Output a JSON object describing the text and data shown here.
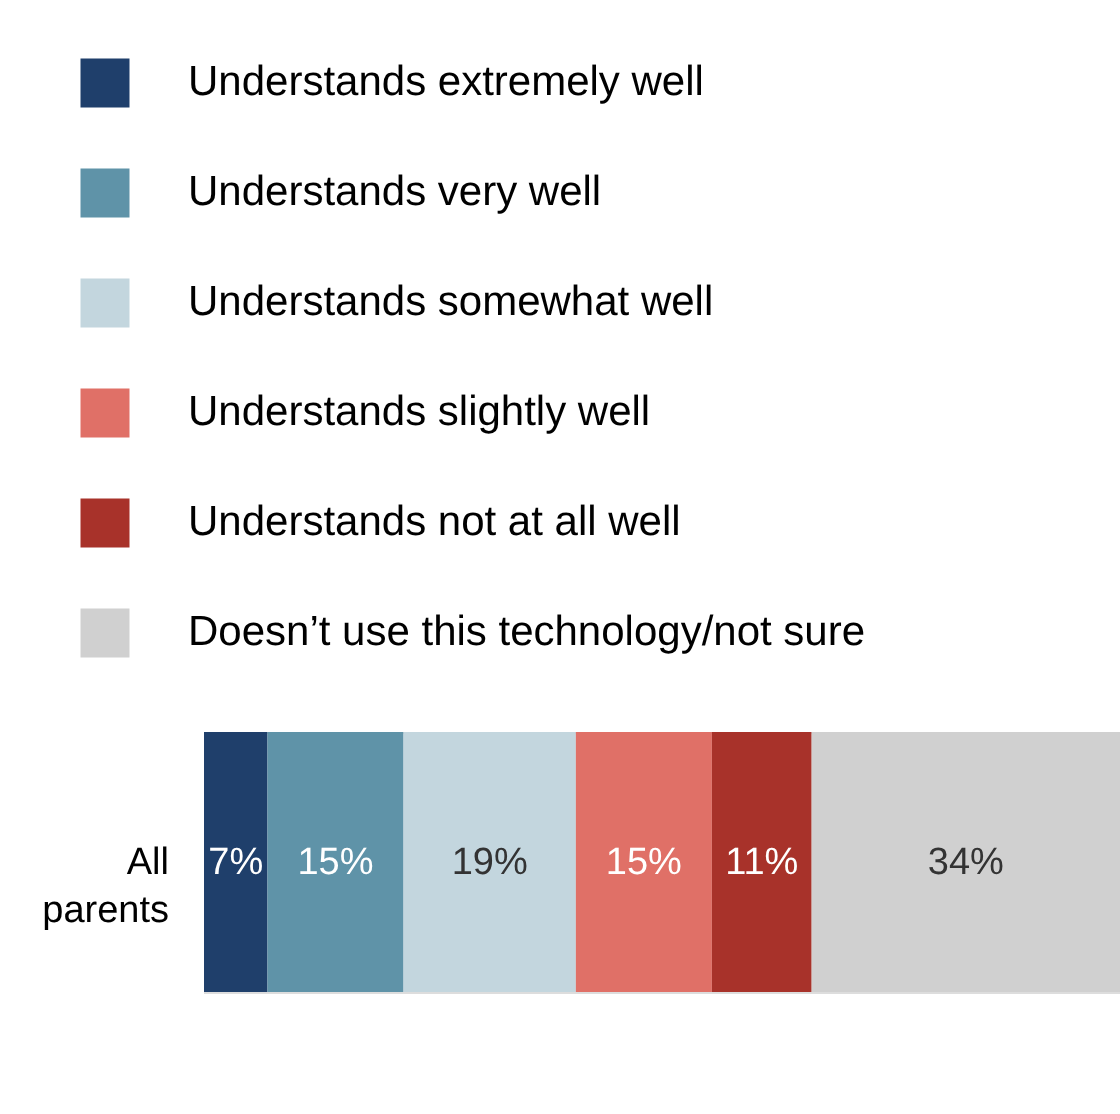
{
  "chart_data": {
    "type": "bar",
    "orientation": "horizontal",
    "stacked": true,
    "legend": "top left",
    "categories": [
      "All parents"
    ],
    "series": [
      {
        "name": "Understands extremely well",
        "color": "#1f3f6b",
        "values": [
          7
        ],
        "value_labels": [
          "7%"
        ]
      },
      {
        "name": "Understands very well",
        "color": "#5f93a8",
        "values": [
          15
        ],
        "value_labels": [
          "15%"
        ]
      },
      {
        "name": "Understands somewhat well",
        "color": "#c3d6de",
        "values": [
          19
        ],
        "value_labels": [
          "19%"
        ]
      },
      {
        "name": "Understands slightly well",
        "color": "#e07067",
        "values": [
          15
        ],
        "value_labels": [
          "15%"
        ]
      },
      {
        "name": "Understands not at all well",
        "color": "#a8322a",
        "values": [
          11
        ],
        "value_labels": [
          "11%"
        ]
      },
      {
        "name": "Doesn’t use this technology/not sure",
        "color": "#d0d0d0",
        "values": [
          34
        ],
        "value_labels": [
          "34%"
        ]
      }
    ]
  }
}
